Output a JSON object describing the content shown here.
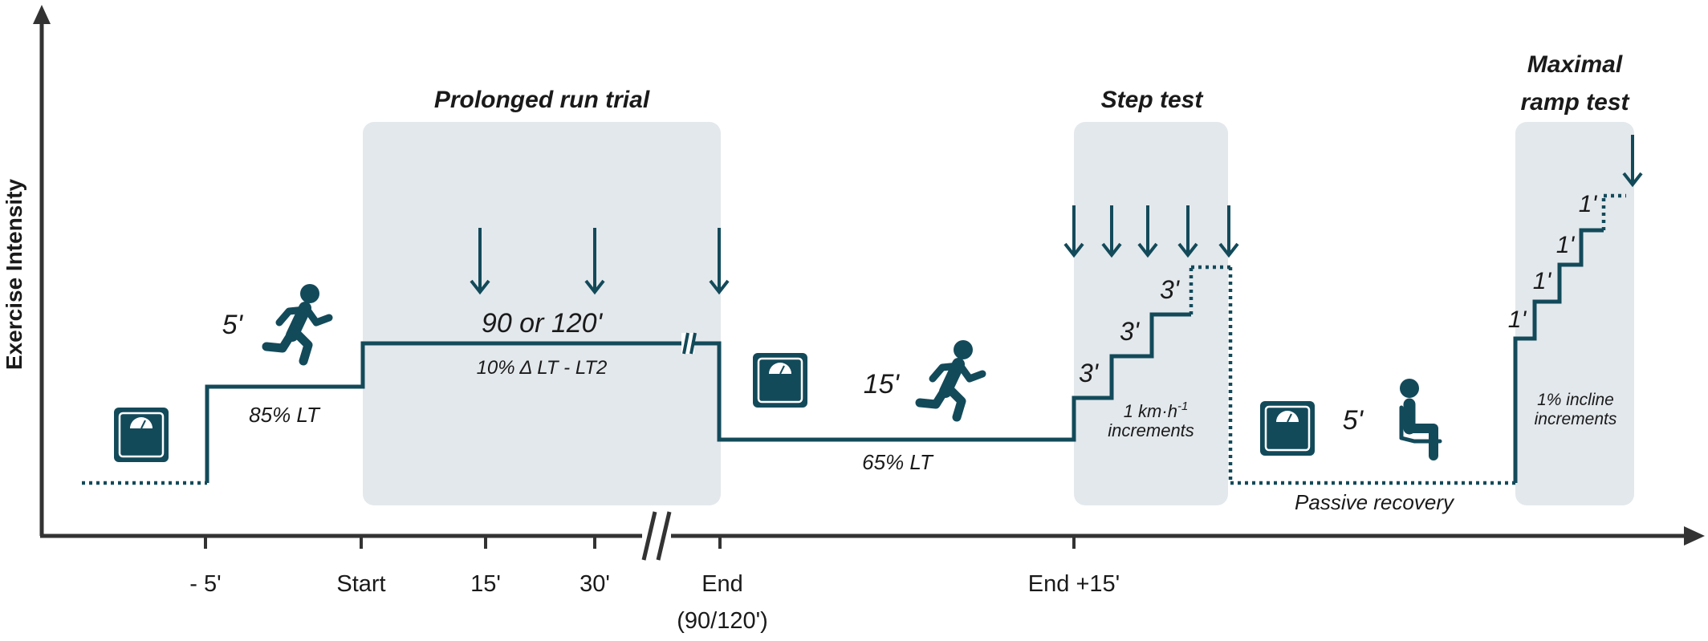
{
  "colors": {
    "profile": "#134a5a",
    "panel": "#e3e8ec",
    "axis": "#333333",
    "text": "#1a1a1a"
  },
  "axes": {
    "y_label": "Exercise Intensity",
    "x_ticks": [
      "- 5'",
      "Start",
      "15'",
      "30'",
      "End",
      "(90/120')",
      "End +15'"
    ]
  },
  "phases": {
    "prolonged": {
      "title": "Prolonged run trial",
      "duration": "90 or 120'",
      "intensity": "10% Δ LT - LT2"
    },
    "step_test": {
      "title": "Step test",
      "increments_line1": "1 km·h",
      "increments_sup": "-1",
      "increments_line2": "increments",
      "step_durations": [
        "3'",
        "3'",
        "3'"
      ]
    },
    "ramp_test": {
      "title_line1": "Maximal",
      "title_line2": "ramp test",
      "increments_line1": "1% incline",
      "increments_line2": "increments",
      "step_durations": [
        "1'",
        "1'",
        "1'",
        "1'"
      ]
    }
  },
  "segments": {
    "warmup": {
      "duration": "5'",
      "intensity": "85% LT"
    },
    "recovery_run": {
      "duration": "15'",
      "intensity": "65% LT"
    },
    "passive": {
      "duration": "5'",
      "label": "Passive recovery"
    }
  },
  "icons": [
    "scale-icon",
    "runner-icon",
    "down-arrow-icon",
    "seated-person-icon"
  ]
}
